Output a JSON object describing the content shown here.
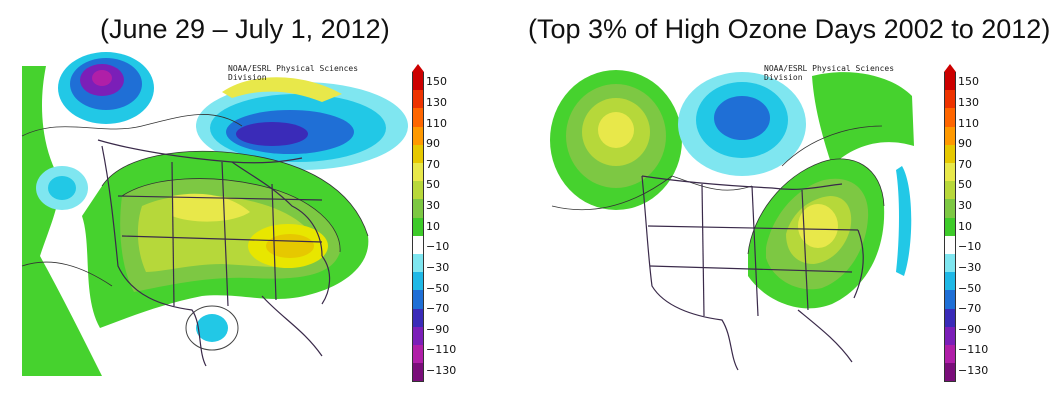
{
  "titles": {
    "left": "(June 29 – July 1, 2012)",
    "right": "(Top 3% of High Ozone Days 2002 to 2012)"
  },
  "credit": "NOAA/ESRL Physical Sciences Division",
  "colorbar": {
    "ticks": [
      "150",
      "130",
      "110",
      "90",
      "70",
      "50",
      "30",
      "10",
      "−10",
      "−30",
      "−50",
      "−70",
      "−90",
      "−110",
      "−130"
    ],
    "colors": [
      "#cc0000",
      "#ee3300",
      "#ff6600",
      "#ff9900",
      "#e6c800",
      "#e8e84a",
      "#b8d83a",
      "#7dc843",
      "#3ecb2a",
      "#ffffff",
      "#7fe6f0",
      "#1fb8e6",
      "#1f6fd6",
      "#3a2bb8",
      "#7b1fb8",
      "#b01fa8",
      "#7a0e7a"
    ]
  },
  "colors": {
    "strong_negative": "#2a1f9e",
    "negative": "#1f6fd6",
    "weak_negative": "#22c8e6",
    "neutral": "#ffffff",
    "weak_positive": "#46d22e",
    "moderate_positive": "#b6d83a",
    "strong_positive": "#e8e600"
  }
}
